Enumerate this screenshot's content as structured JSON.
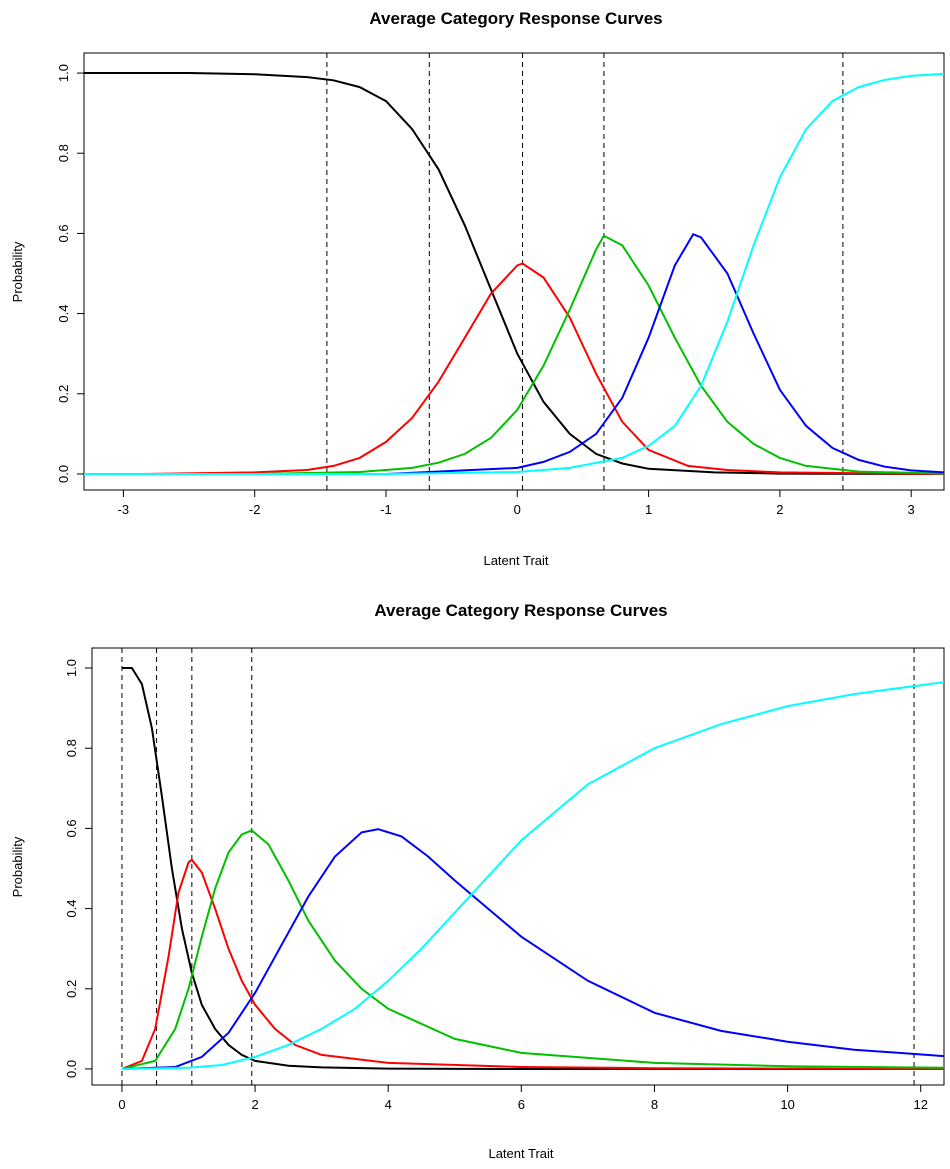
{
  "chart_data": [
    {
      "type": "line",
      "title": "Average Category Response Curves",
      "xlabel": "Latent Trait",
      "ylabel": "Probability",
      "xlim": [
        -3.3,
        3.25
      ],
      "ylim": [
        -0.04,
        1.05
      ],
      "x_ticks": [
        -3,
        -2,
        -1,
        0,
        1,
        2,
        3
      ],
      "x_tick_labels": [
        "-3",
        "-2",
        "-1",
        "0",
        "1",
        "2",
        "3"
      ],
      "y_ticks": [
        0.0,
        0.2,
        0.4,
        0.6,
        0.8,
        1.0
      ],
      "y_tick_labels": [
        "0.0",
        "0.2",
        "0.4",
        "0.6",
        "0.8",
        "1.0"
      ],
      "vlines": [
        -1.45,
        -0.67,
        0.04,
        0.66,
        2.48
      ],
      "grid": false,
      "legend": "none",
      "series": [
        {
          "color": "#000000",
          "x": [
            -3.3,
            -2.5,
            -2.0,
            -1.6,
            -1.4,
            -1.2,
            -1.0,
            -0.8,
            -0.6,
            -0.4,
            -0.2,
            0.0,
            0.2,
            0.4,
            0.6,
            0.8,
            1.0,
            1.5,
            2.0,
            3.25
          ],
          "y": [
            1.0,
            1.0,
            0.997,
            0.99,
            0.982,
            0.965,
            0.93,
            0.86,
            0.76,
            0.62,
            0.46,
            0.3,
            0.18,
            0.1,
            0.05,
            0.026,
            0.013,
            0.004,
            0.001,
            0.0
          ]
        },
        {
          "color": "#ff0000",
          "x": [
            -2.85,
            -2.0,
            -1.6,
            -1.4,
            -1.2,
            -1.0,
            -0.8,
            -0.6,
            -0.4,
            -0.2,
            0.0,
            0.04,
            0.2,
            0.4,
            0.6,
            0.8,
            1.0,
            1.3,
            1.6,
            2.0,
            3.25
          ],
          "y": [
            0.0,
            0.004,
            0.01,
            0.02,
            0.04,
            0.08,
            0.14,
            0.23,
            0.34,
            0.45,
            0.52,
            0.525,
            0.49,
            0.39,
            0.25,
            0.13,
            0.06,
            0.02,
            0.01,
            0.004,
            0.0
          ]
        },
        {
          "color": "#00c000",
          "x": [
            -2.0,
            -1.2,
            -0.8,
            -0.6,
            -0.4,
            -0.2,
            0.0,
            0.2,
            0.4,
            0.6,
            0.66,
            0.8,
            1.0,
            1.2,
            1.4,
            1.6,
            1.8,
            2.0,
            2.2,
            2.6,
            3.25
          ],
          "y": [
            0.0,
            0.005,
            0.015,
            0.028,
            0.05,
            0.09,
            0.16,
            0.27,
            0.41,
            0.56,
            0.594,
            0.57,
            0.47,
            0.34,
            0.22,
            0.13,
            0.075,
            0.04,
            0.02,
            0.006,
            0.001
          ]
        },
        {
          "color": "#0000ff",
          "x": [
            -1.0,
            0.0,
            0.2,
            0.4,
            0.6,
            0.8,
            1.0,
            1.2,
            1.34,
            1.4,
            1.6,
            1.8,
            2.0,
            2.2,
            2.4,
            2.6,
            2.8,
            3.0,
            3.25
          ],
          "y": [
            0.0,
            0.015,
            0.03,
            0.055,
            0.1,
            0.19,
            0.34,
            0.52,
            0.598,
            0.59,
            0.5,
            0.35,
            0.21,
            0.12,
            0.065,
            0.035,
            0.018,
            0.009,
            0.004
          ]
        },
        {
          "color": "#00ffff",
          "x": [
            -3.3,
            -1.0,
            0.0,
            0.4,
            0.8,
            1.0,
            1.2,
            1.4,
            1.6,
            1.8,
            2.0,
            2.2,
            2.4,
            2.6,
            2.8,
            3.0,
            3.25
          ],
          "y": [
            0.0,
            0.0,
            0.005,
            0.015,
            0.04,
            0.07,
            0.12,
            0.22,
            0.38,
            0.57,
            0.74,
            0.86,
            0.93,
            0.965,
            0.983,
            0.993,
            0.998
          ]
        }
      ]
    },
    {
      "type": "line",
      "title": "Average Category Response Curves",
      "xlabel": "Latent Trait",
      "ylabel": "Probability",
      "xlim": [
        -0.45,
        12.35
      ],
      "ylim": [
        -0.04,
        1.05
      ],
      "x_ticks": [
        0,
        2,
        4,
        6,
        8,
        10,
        12
      ],
      "x_tick_labels": [
        "0",
        "2",
        "4",
        "6",
        "8",
        "10",
        "12"
      ],
      "y_ticks": [
        0.0,
        0.2,
        0.4,
        0.6,
        0.8,
        1.0
      ],
      "y_tick_labels": [
        "0.0",
        "0.2",
        "0.4",
        "0.6",
        "0.8",
        "1.0"
      ],
      "vlines": [
        0.0,
        0.52,
        1.05,
        1.95,
        11.9
      ],
      "grid": false,
      "legend": "none",
      "series": [
        {
          "color": "#000000",
          "x": [
            0.0,
            0.15,
            0.3,
            0.45,
            0.6,
            0.75,
            0.9,
            1.05,
            1.2,
            1.4,
            1.6,
            1.8,
            2.0,
            2.5,
            3.0,
            4.0,
            6.0,
            12.35
          ],
          "y": [
            1.0,
            1.0,
            0.96,
            0.85,
            0.68,
            0.5,
            0.35,
            0.24,
            0.16,
            0.1,
            0.06,
            0.035,
            0.02,
            0.008,
            0.004,
            0.001,
            0.0,
            0.0
          ]
        },
        {
          "color": "#ff0000",
          "x": [
            0.0,
            0.3,
            0.5,
            0.7,
            0.85,
            1.0,
            1.05,
            1.2,
            1.4,
            1.6,
            1.8,
            2.0,
            2.3,
            2.6,
            3.0,
            4.0,
            6.0,
            8.0,
            12.35
          ],
          "y": [
            0.0,
            0.02,
            0.1,
            0.28,
            0.44,
            0.515,
            0.522,
            0.49,
            0.4,
            0.3,
            0.22,
            0.16,
            0.1,
            0.06,
            0.035,
            0.015,
            0.005,
            0.002,
            0.0
          ]
        },
        {
          "color": "#00c000",
          "x": [
            0.0,
            0.5,
            0.8,
            1.0,
            1.2,
            1.4,
            1.6,
            1.8,
            1.95,
            2.2,
            2.5,
            2.8,
            3.2,
            3.6,
            4.0,
            5.0,
            6.0,
            8.0,
            10.0,
            12.35
          ],
          "y": [
            0.0,
            0.02,
            0.1,
            0.2,
            0.33,
            0.45,
            0.54,
            0.585,
            0.595,
            0.56,
            0.47,
            0.37,
            0.27,
            0.2,
            0.15,
            0.075,
            0.04,
            0.015,
            0.007,
            0.003
          ]
        },
        {
          "color": "#0000ff",
          "x": [
            0.0,
            0.8,
            1.2,
            1.6,
            2.0,
            2.4,
            2.8,
            3.2,
            3.6,
            3.85,
            4.2,
            4.6,
            5.0,
            5.5,
            6.0,
            7.0,
            8.0,
            9.0,
            10.0,
            11.0,
            12.35
          ],
          "y": [
            0.0,
            0.005,
            0.03,
            0.09,
            0.19,
            0.31,
            0.43,
            0.53,
            0.59,
            0.598,
            0.58,
            0.53,
            0.47,
            0.4,
            0.33,
            0.22,
            0.14,
            0.095,
            0.068,
            0.048,
            0.032
          ]
        },
        {
          "color": "#00ffff",
          "x": [
            0.0,
            1.0,
            1.5,
            2.0,
            2.5,
            3.0,
            3.5,
            4.0,
            4.5,
            5.0,
            5.5,
            6.0,
            7.0,
            8.0,
            9.0,
            10.0,
            11.0,
            12.35
          ],
          "y": [
            0.0,
            0.003,
            0.01,
            0.03,
            0.06,
            0.1,
            0.15,
            0.22,
            0.3,
            0.39,
            0.48,
            0.57,
            0.71,
            0.8,
            0.86,
            0.905,
            0.935,
            0.965
          ]
        }
      ]
    }
  ]
}
